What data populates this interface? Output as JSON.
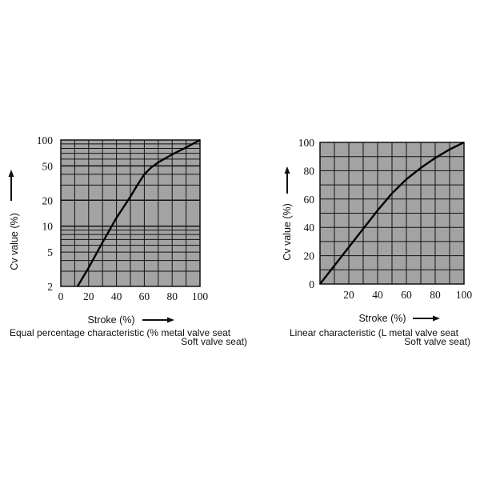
{
  "colors": {
    "plot_background": "#a3a3a3",
    "grid": "#111111",
    "curve": "#000000",
    "text": "#111111",
    "page_background": "#ffffff"
  },
  "chart_data": [
    {
      "type": "line",
      "scale_y": "log",
      "title": "",
      "xlabel": "Stroke (%)",
      "ylabel": "Cv value (%)",
      "caption": "Equal percentage characteristic (% metal valve seat",
      "caption_line2": "Soft valve seat)",
      "xlim": [
        0,
        100
      ],
      "ylim": [
        2,
        100
      ],
      "x_ticks": [
        "0",
        "20",
        "40",
        "60",
        "80",
        "100"
      ],
      "y_ticks": [
        "2",
        "5",
        "10",
        "20",
        "50",
        "100"
      ],
      "series": [
        {
          "x": [
            12,
            20,
            30,
            40,
            50,
            55,
            60,
            65,
            70,
            80,
            90,
            100
          ],
          "y": [
            2,
            3.3,
            6.5,
            12.5,
            22,
            30,
            40,
            48,
            55,
            68,
            82,
            100
          ]
        }
      ]
    },
    {
      "type": "line",
      "scale_y": "linear",
      "title": "",
      "xlabel": "Stroke (%)",
      "ylabel": "Cv value (%)",
      "caption": "Linear characteristic (L metal valve seat",
      "caption_line2": "Soft valve seat)",
      "xlim": [
        0,
        100
      ],
      "ylim": [
        0,
        100
      ],
      "x_ticks": [
        "20",
        "40",
        "60",
        "80",
        "100"
      ],
      "y_ticks": [
        "0",
        "20",
        "40",
        "60",
        "80",
        "100"
      ],
      "series": [
        {
          "x": [
            0,
            10,
            20,
            30,
            40,
            50,
            60,
            70,
            80,
            90,
            100
          ],
          "y": [
            0,
            13,
            26,
            39,
            52,
            64,
            74,
            82,
            89,
            95,
            100
          ]
        }
      ]
    }
  ]
}
